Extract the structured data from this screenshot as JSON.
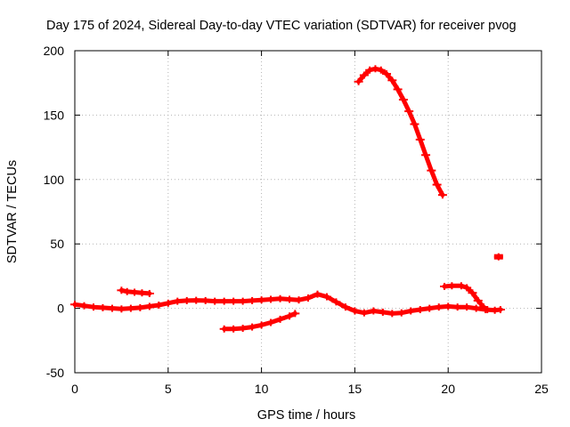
{
  "chart_data": {
    "type": "scatter",
    "title": "Day 175 of 2024, Sidereal Day-to-day VTEC variation (SDTVAR) for receiver pvog",
    "xlabel": "GPS time / hours",
    "ylabel": "SDTVAR / TECUs",
    "xlim": [
      0,
      25
    ],
    "ylim": [
      -50,
      200
    ],
    "xticks": [
      0,
      5,
      10,
      15,
      20,
      25
    ],
    "yticks": [
      -50,
      0,
      50,
      100,
      150,
      200
    ],
    "grid": true,
    "series_color": "#ff0000",
    "series": [
      {
        "name": "baseline",
        "points": [
          [
            0,
            3
          ],
          [
            0.5,
            2
          ],
          [
            1,
            1
          ],
          [
            1.5,
            0.5
          ],
          [
            2,
            0
          ],
          [
            2.5,
            -0.5
          ],
          [
            3,
            0
          ],
          [
            3.5,
            0.5
          ],
          [
            4,
            1.5
          ],
          [
            4.5,
            2.5
          ],
          [
            5,
            4
          ],
          [
            5.5,
            5.5
          ],
          [
            6,
            6
          ],
          [
            6.5,
            6.2
          ],
          [
            7,
            6
          ],
          [
            7.5,
            5.5
          ],
          [
            8,
            5.5
          ],
          [
            8.5,
            5.5
          ],
          [
            9,
            5.5
          ],
          [
            9.5,
            6
          ],
          [
            10,
            6.5
          ],
          [
            10.5,
            7
          ],
          [
            11,
            7.5
          ],
          [
            11.5,
            7
          ],
          [
            12,
            6.5
          ],
          [
            12.5,
            8
          ],
          [
            13,
            11
          ],
          [
            13.5,
            9
          ],
          [
            14,
            5
          ],
          [
            14.5,
            1
          ],
          [
            15,
            -2
          ],
          [
            15.5,
            -3.5
          ],
          [
            16,
            -2
          ],
          [
            16.5,
            -3
          ],
          [
            17,
            -4
          ],
          [
            17.5,
            -3.5
          ],
          [
            18,
            -2
          ],
          [
            18.5,
            -1
          ],
          [
            19,
            0
          ],
          [
            19.5,
            1
          ],
          [
            20,
            1.5
          ],
          [
            20.5,
            1
          ],
          [
            21,
            1
          ],
          [
            21.5,
            0
          ],
          [
            22,
            -1
          ],
          [
            22.5,
            -1.5
          ],
          [
            22.8,
            -1
          ]
        ]
      },
      {
        "name": "segment-3h",
        "points": [
          [
            2.5,
            14
          ],
          [
            2.8,
            13
          ],
          [
            3.2,
            12.5
          ],
          [
            3.6,
            12
          ],
          [
            4,
            11.5
          ]
        ]
      },
      {
        "name": "segment-8h",
        "points": [
          [
            8,
            -16
          ],
          [
            8.5,
            -16
          ],
          [
            9,
            -15.5
          ],
          [
            9.5,
            -14.5
          ],
          [
            10,
            -13
          ],
          [
            10.5,
            -11
          ],
          [
            11,
            -8.5
          ],
          [
            11.5,
            -6
          ],
          [
            11.8,
            -4
          ]
        ]
      },
      {
        "name": "arc-16h",
        "points": [
          [
            15.2,
            176
          ],
          [
            15.5,
            181
          ],
          [
            15.8,
            185
          ],
          [
            16.1,
            186
          ],
          [
            16.4,
            185
          ],
          [
            16.7,
            182
          ],
          [
            17,
            177
          ],
          [
            17.3,
            170
          ],
          [
            17.6,
            162
          ],
          [
            17.9,
            153
          ],
          [
            18.2,
            143
          ],
          [
            18.5,
            131
          ],
          [
            18.8,
            119
          ],
          [
            19.1,
            107
          ],
          [
            19.4,
            96
          ],
          [
            19.7,
            88
          ]
        ]
      },
      {
        "name": "bump-21h",
        "points": [
          [
            19.8,
            17
          ],
          [
            20.2,
            17.5
          ],
          [
            20.7,
            17.5
          ],
          [
            21,
            16
          ],
          [
            21.3,
            12
          ],
          [
            21.6,
            6
          ],
          [
            21.9,
            1
          ],
          [
            22.1,
            -1
          ]
        ]
      },
      {
        "name": "point-23h",
        "points": [
          [
            22.7,
            40
          ]
        ]
      }
    ]
  }
}
